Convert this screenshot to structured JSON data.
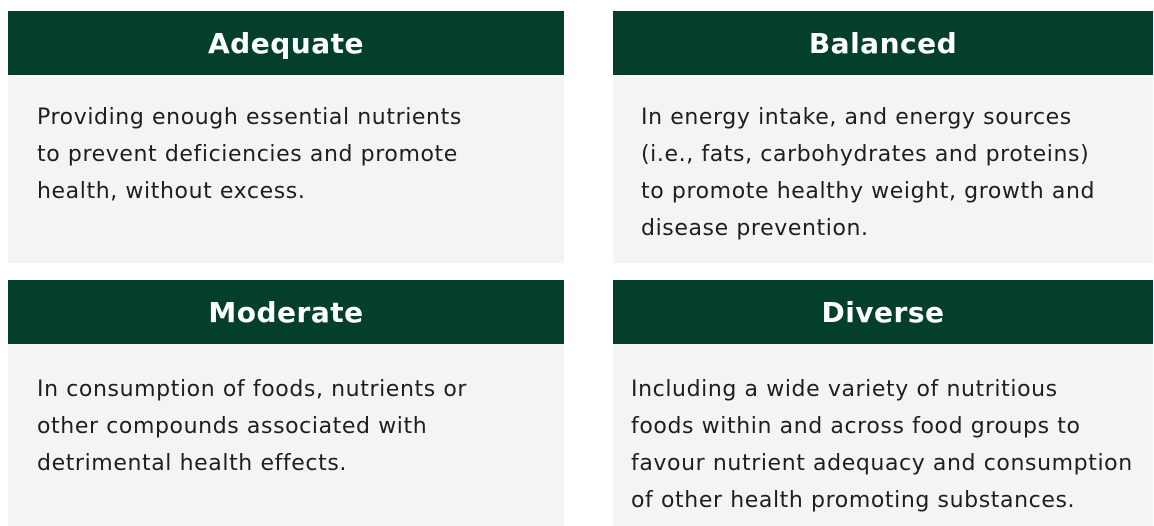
{
  "cards": [
    {
      "title": "Adequate",
      "lines": [
        "Providing enough essential nutrients",
        "to prevent deficiencies and promote",
        "health, without excess."
      ]
    },
    {
      "title": "Balanced",
      "lines": [
        "In energy intake, and energy sources",
        "(i.e., fats, carbohydrates and proteins)",
        "to promote healthy weight, growth and",
        "disease prevention."
      ]
    },
    {
      "title": "Moderate",
      "lines": [
        "In consumption of foods, nutrients or",
        "other compounds associated with",
        "detrimental health effects."
      ]
    },
    {
      "title": "Diverse",
      "lines": [
        "Including a wide variety of nutritious",
        "foods within and across food groups to",
        "favour nutrient adequacy and consumption",
        "of other health promoting substances."
      ]
    }
  ]
}
